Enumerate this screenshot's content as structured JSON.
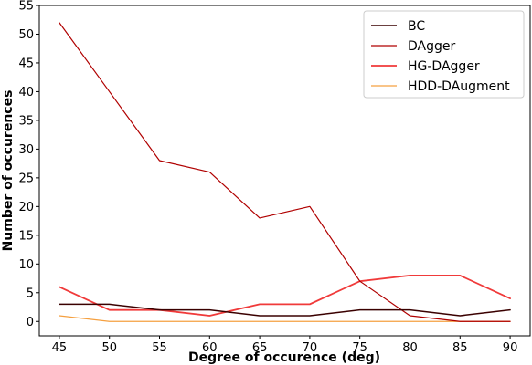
{
  "chart_data": {
    "type": "line",
    "title": "",
    "xlabel": "Degree of occurence (deg)",
    "ylabel": "Number of occurences",
    "x": [
      45,
      50,
      55,
      60,
      65,
      70,
      75,
      80,
      85,
      90
    ],
    "xlim": [
      43,
      92
    ],
    "ylim": [
      -2.5,
      55
    ],
    "xticks": [
      45,
      50,
      55,
      60,
      65,
      70,
      75,
      80,
      85,
      90
    ],
    "yticks": [
      0,
      5,
      10,
      15,
      20,
      25,
      30,
      35,
      40,
      45,
      50,
      55
    ],
    "grid": false,
    "legend": "top-right",
    "series": [
      {
        "name": "BC",
        "color": "#3a0000",
        "width": 1.5,
        "values": [
          3,
          3,
          2,
          2,
          1,
          1,
          2,
          2,
          1,
          2
        ]
      },
      {
        "name": "DAgger",
        "color": "#b00000",
        "width": 1.2,
        "values": [
          52,
          40,
          28,
          26,
          18,
          20,
          7,
          1,
          0,
          0
        ]
      },
      {
        "name": "HG-DAgger",
        "color": "#f03a3a",
        "width": 1.8,
        "values": [
          6,
          2,
          2,
          1,
          3,
          3,
          7,
          8,
          8,
          4
        ]
      },
      {
        "name": "HDD-DAugment",
        "color": "#f5a040",
        "width": 1.2,
        "values": [
          1,
          0,
          0,
          0,
          0,
          0,
          0,
          0,
          0,
          0
        ]
      }
    ]
  }
}
